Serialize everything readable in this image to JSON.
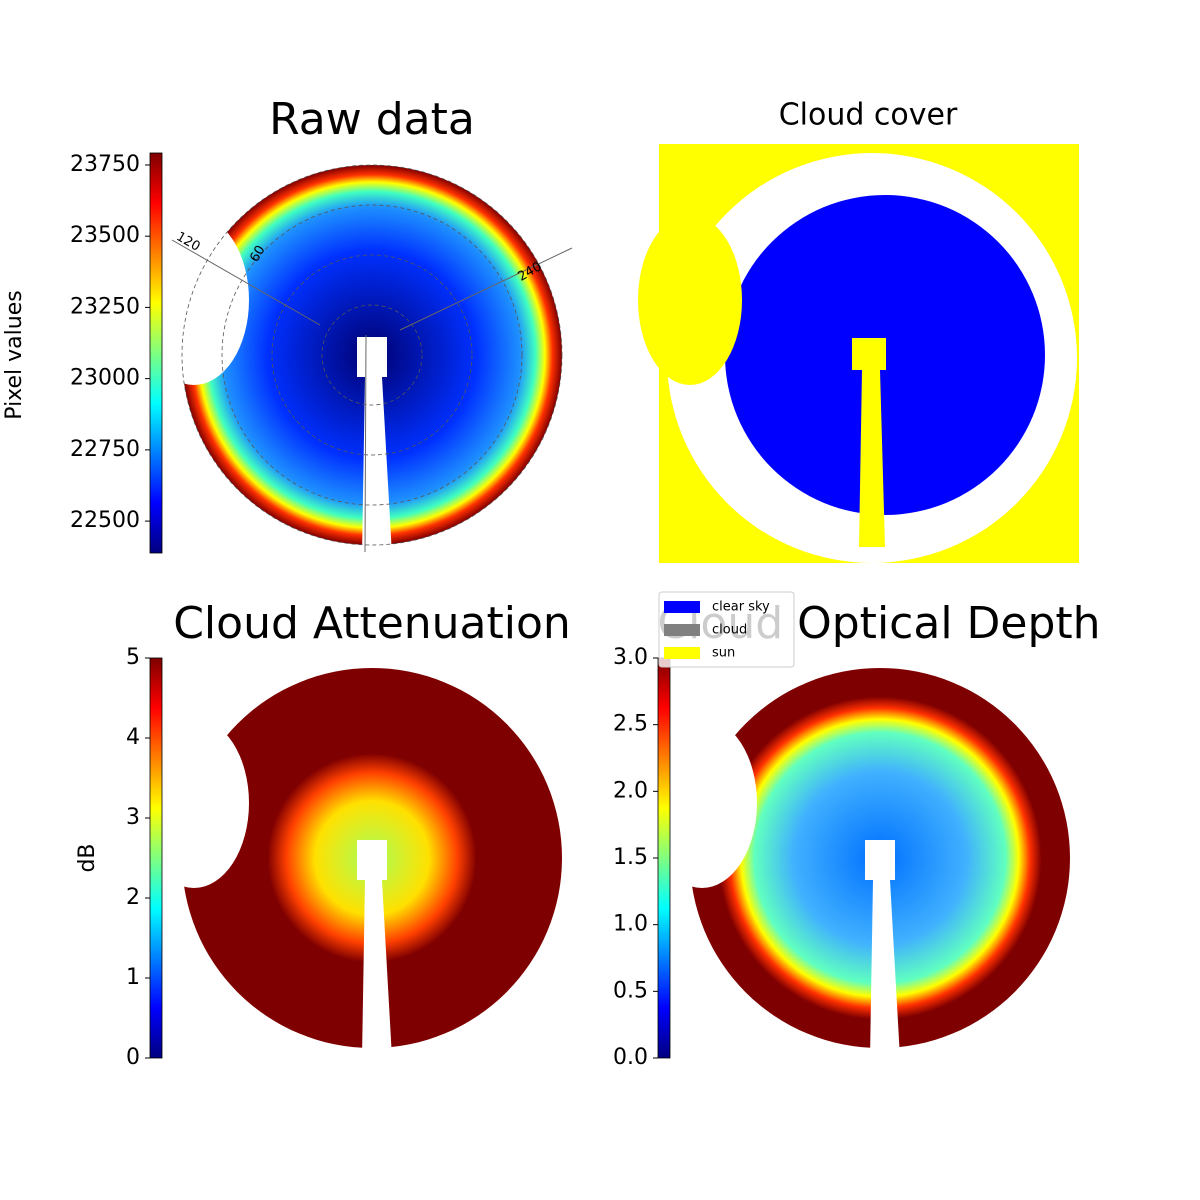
{
  "chart_data": [
    {
      "type": "image",
      "title": "Raw data",
      "colormap": "jet",
      "colorbar": {
        "label": "Pixel values",
        "lim": [
          22388,
          23792
        ],
        "ticks": [
          22500,
          22750,
          23000,
          23250,
          23500,
          23750
        ]
      },
      "annotations": [
        "120",
        "60",
        "240"
      ]
    },
    {
      "type": "image",
      "title": "Cloud cover",
      "legend": [
        {
          "name": "clear sky",
          "color": "#0000ff"
        },
        {
          "name": "cloud",
          "color": "#808080"
        },
        {
          "name": "sun",
          "color": "#ffff00"
        }
      ]
    },
    {
      "type": "image",
      "title": "Cloud Attenuation",
      "colormap": "jet",
      "colorbar": {
        "label": "dB",
        "lim": [
          0,
          5
        ],
        "ticks": [
          0,
          1,
          2,
          3,
          4,
          5
        ]
      }
    },
    {
      "type": "image",
      "title": "Cloud Optical Depth",
      "colormap": "jet",
      "colorbar": {
        "lim": [
          0,
          3
        ],
        "ticks": [
          {
            "value": 0,
            "label": "0.0"
          },
          0.5,
          {
            "value": 1,
            "label": "1.0"
          },
          1.5,
          {
            "value": 2,
            "label": "2.0"
          },
          2.5,
          {
            "value": 3,
            "label": "3.0"
          }
        ]
      }
    }
  ]
}
